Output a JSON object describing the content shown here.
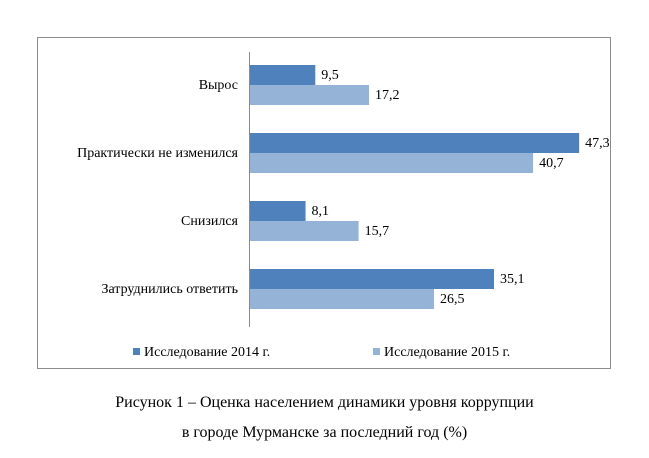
{
  "chart_data": {
    "type": "bar",
    "orientation": "horizontal",
    "categories": [
      "Вырос",
      "Практически не изменился",
      "Снизился",
      "Затруднились ответить"
    ],
    "series": [
      {
        "name": "Исследование 2014 г.",
        "values": [
          9.5,
          47.3,
          8.1,
          35.1
        ],
        "labels": [
          "9,5",
          "47,3",
          "8,1",
          "35,1"
        ],
        "color": "#4f81bd"
      },
      {
        "name": "Исследование 2015 г.",
        "values": [
          17.2,
          40.7,
          15.7,
          26.5
        ],
        "labels": [
          "17,2",
          "40,7",
          "15,7",
          "26,5"
        ],
        "color": "#95b3d7"
      }
    ],
    "legend": "bottom",
    "grid": false,
    "xlim": [
      0,
      50
    ]
  },
  "caption": {
    "line1": "Рисунок 1 – Оценка населением динамики уровня коррупции",
    "line2": "в городе Мурманске за последний год (%)"
  }
}
